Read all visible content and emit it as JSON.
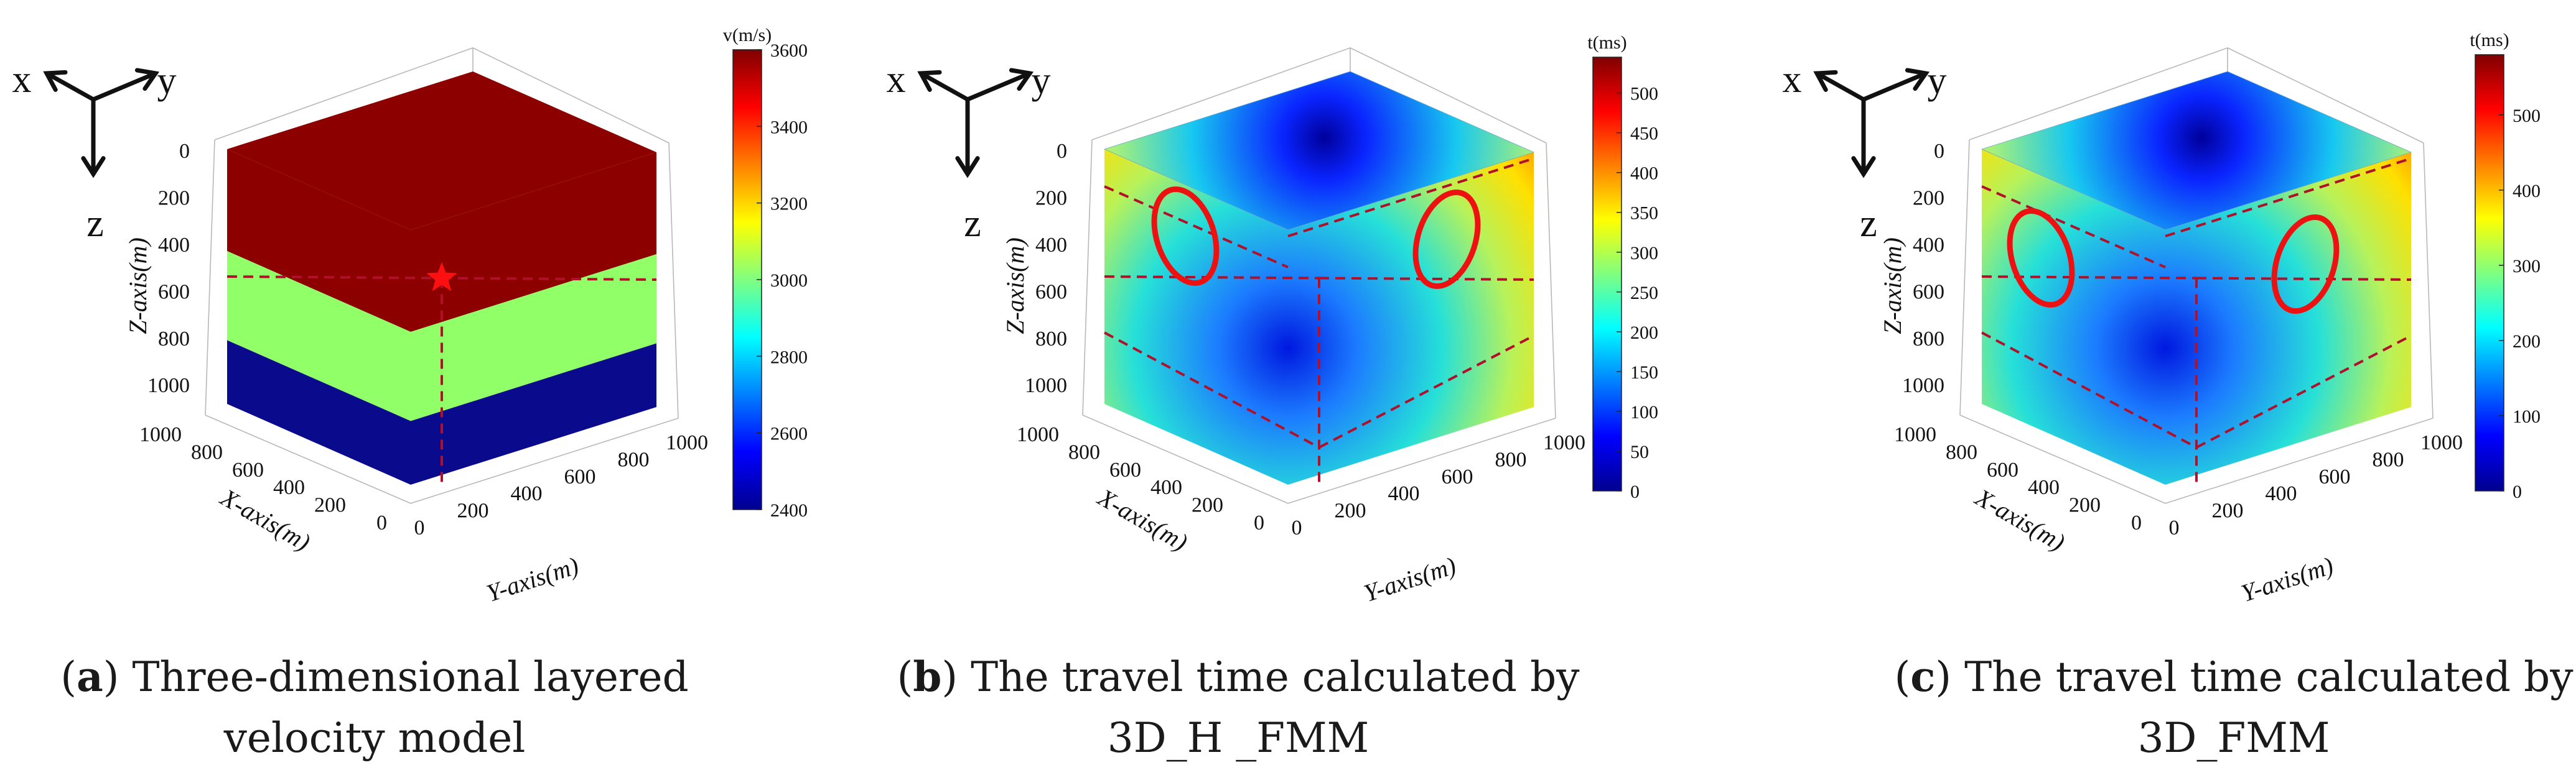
{
  "chart_data": [
    {
      "type": "3d-surface-cube",
      "panel": "a",
      "caption_letter": "a",
      "caption_text": " Three-dimensional layered velocity model",
      "colorbar": {
        "label": "v(m/s)",
        "min": 2400,
        "max": 3600,
        "ticks": [
          2400,
          2600,
          2800,
          3000,
          3200,
          3400,
          3600
        ]
      },
      "axes": {
        "xlabel": "X-axis(m)",
        "ylabel": "Y-axis(m)",
        "zlabel": "Z-axis(m)",
        "x_ticks": [
          0,
          200,
          400,
          600,
          800,
          1000
        ],
        "y_ticks": [
          0,
          200,
          400,
          600,
          800,
          1000
        ],
        "z_ticks": [
          0,
          200,
          400,
          600,
          800,
          1000
        ]
      },
      "layers": [
        {
          "z_top": 0,
          "z_bottom": 400,
          "velocity": 3600
        },
        {
          "z_top": 400,
          "z_bottom": 750,
          "velocity": 3100
        },
        {
          "z_top": 750,
          "z_bottom": 1000,
          "velocity": 2400
        }
      ],
      "source": {
        "x": 500,
        "y": 500,
        "z": 500,
        "marker": "star"
      },
      "triad": {
        "x": "x",
        "y": "y",
        "z": "z"
      }
    },
    {
      "type": "3d-surface-cube",
      "panel": "b",
      "caption_letter": "b",
      "caption_text": " The travel time calculated by 3D_H _FMM",
      "colorbar": {
        "label": "t(ms)",
        "min": 0,
        "max": 545,
        "ticks": [
          0,
          50,
          100,
          150,
          200,
          250,
          300,
          350,
          400,
          450,
          500
        ]
      },
      "axes": {
        "xlabel": "X-axis(m)",
        "ylabel": "Y-axis(m)",
        "zlabel": "Z-axis(m)",
        "x_ticks": [
          0,
          200,
          400,
          600,
          800,
          1000
        ],
        "y_ticks": [
          0,
          200,
          400,
          600,
          800,
          1000
        ],
        "z_ticks": [
          0,
          200,
          400,
          600,
          800,
          1000
        ]
      },
      "source": {
        "x": 500,
        "y": 500,
        "z": 500
      },
      "annotations": [
        "red ellipse on left face",
        "red ellipse on right face"
      ],
      "triad": {
        "x": "x",
        "y": "y",
        "z": "z"
      }
    },
    {
      "type": "3d-surface-cube",
      "panel": "c",
      "caption_letter": "c",
      "caption_text": " The travel time calculated by 3D_FMM",
      "colorbar": {
        "label": "t(ms)",
        "min": 0,
        "max": 580,
        "ticks": [
          0,
          100,
          200,
          300,
          400,
          500
        ]
      },
      "axes": {
        "xlabel": "X-axis(m)",
        "ylabel": "Y-axis(m)",
        "zlabel": "Z-axis(m)",
        "x_ticks": [
          0,
          200,
          400,
          600,
          800,
          1000
        ],
        "y_ticks": [
          0,
          200,
          400,
          600,
          800,
          1000
        ],
        "z_ticks": [
          0,
          200,
          400,
          600,
          800,
          1000
        ]
      },
      "source": {
        "x": 500,
        "y": 500,
        "z": 500
      },
      "annotations": [
        "red ellipse on left face",
        "red ellipse on right face"
      ],
      "triad": {
        "x": "x",
        "y": "y",
        "z": "z"
      }
    }
  ],
  "colors": {
    "layer_top": "#8c0000",
    "layer_mid": "#90ff68",
    "layer_bottom": "#0a0a8c",
    "dash": "#b0102a",
    "ellipse": "#ee1111",
    "star": "#ff1010"
  }
}
